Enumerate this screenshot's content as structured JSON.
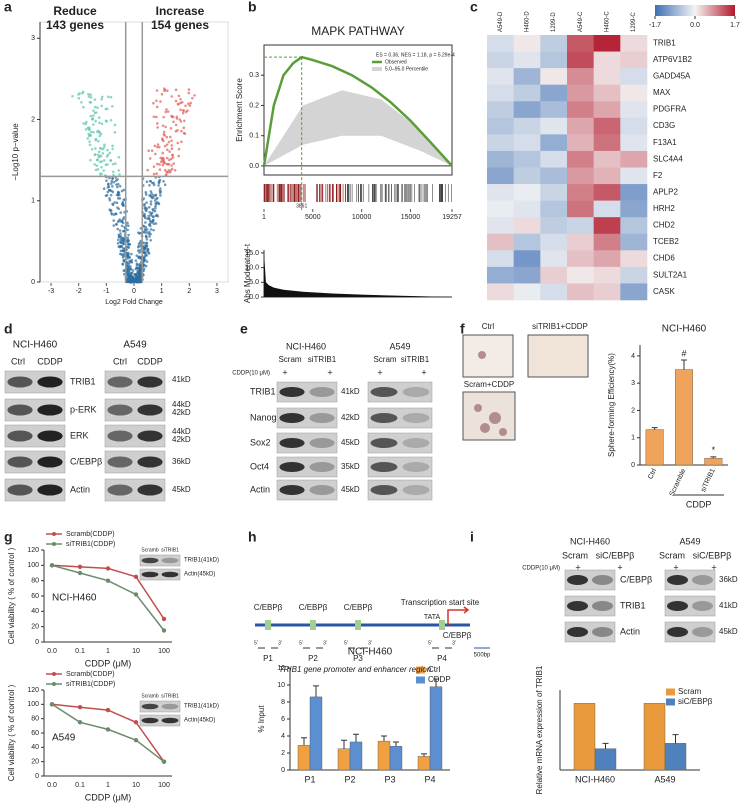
{
  "letters": [
    "a",
    "b",
    "c",
    "d",
    "e",
    "f",
    "g",
    "h",
    "i"
  ],
  "chart_data": [
    {
      "type": "volcano",
      "xlabel": "Log2 Fold Change",
      "ylabel": "−Log10 p−value",
      "xlim": [
        -3.4,
        3.4
      ],
      "xticks": [
        -3,
        -2,
        -1,
        0,
        1,
        2,
        3
      ],
      "ylim": [
        0,
        3.2
      ],
      "yticks": [
        0,
        1,
        2,
        3
      ],
      "thresholds": {
        "x": [
          -0.3,
          0.3
        ],
        "y": 1.3
      },
      "annotations": [
        "Reduce",
        "143 genes",
        "Increase",
        "154 genes"
      ],
      "colors": {
        "down": "#5fc4b0",
        "up": "#e0605a",
        "base": "#2f6e9e"
      }
    },
    {
      "type": "line",
      "title": "MAPK PATHWAY",
      "ylabel": "Enrichment Score",
      "xlim": [
        1,
        19257
      ],
      "xticks": [
        1,
        5000,
        10000,
        15000,
        19257
      ],
      "ylim": [
        -0.03,
        0.4
      ],
      "yticks": [
        {
          "value": 0,
          "label": "0.0"
        },
        0.1,
        0.2,
        0.3
      ],
      "annotation": "ES = 0.36, NES = 1.18, p = 5.29e-4",
      "series": [
        {
          "name": "Observed",
          "color": "#5a9e3a",
          "x": [
            1,
            1000,
            2000,
            3000,
            3861,
            5000,
            7000,
            9000,
            11000,
            13000,
            15000,
            17000,
            19257
          ],
          "values": [
            0,
            0.2,
            0.3,
            0.34,
            0.36,
            0.35,
            0.33,
            0.3,
            0.26,
            0.21,
            0.15,
            0.08,
            0
          ]
        }
      ],
      "band": {
        "name": "5.0–95.0 Percentile",
        "color": "#d4d4d4",
        "x": [
          1,
          4000,
          8000,
          12000,
          16000,
          19257
        ],
        "upper": [
          0,
          0.2,
          0.25,
          0.22,
          0.12,
          0
        ],
        "lower": [
          0,
          0.07,
          0.1,
          0.1,
          0.05,
          0
        ]
      }
    },
    {
      "type": "area",
      "ylabel": "Abs Moderated-t",
      "xlim": [
        1,
        19257
      ],
      "ylim": [
        0,
        16
      ],
      "yticks": [
        {
          "value": 0,
          "label": "0.0"
        },
        {
          "value": 5,
          "label": "5.0"
        },
        {
          "value": 10,
          "label": "10.0"
        },
        {
          "value": 15,
          "label": "15.0"
        }
      ],
      "color": "#111111",
      "x": [
        1,
        200,
        500,
        1000,
        2000,
        4000,
        7000,
        10000,
        14000,
        19257
      ],
      "values": [
        15,
        5,
        4,
        3.2,
        2.5,
        1.8,
        1.2,
        0.8,
        0.4,
        0
      ]
    },
    {
      "type": "heatmap",
      "columns": [
        "A549-D",
        "H460-D",
        "1299-D",
        "A549-C",
        "H460-C",
        "1299-C"
      ],
      "rows": [
        "TRIB1",
        "ATP6V1B2",
        "GADD45A",
        "MAX",
        "PDGFRA",
        "CD3G",
        "F13A1",
        "SLC4A4",
        "F2",
        "APLP2",
        "HRH2",
        "CHD2",
        "TCEB2",
        "CHD6",
        "SULT2A1",
        "CASK"
      ],
      "highlight_row": 0,
      "zlim": [
        -1.7,
        1.7
      ],
      "zticks": [
        -1.7,
        {
          "value": 0,
          "label": "0.0"
        },
        1.7
      ],
      "colors": [
        "#3f6fb5",
        "#f4f4f4",
        "#b2182b"
      ],
      "values": [
        [
          -0.3,
          0.1,
          -0.5,
          1.2,
          1.6,
          0.2
        ],
        [
          -0.4,
          -0.2,
          -0.6,
          1.3,
          0.2,
          0.3
        ],
        [
          -0.2,
          -0.8,
          0.1,
          0.8,
          0.2,
          -0.3
        ],
        [
          -0.3,
          -0.5,
          -1.0,
          0.7,
          0.4,
          0.1
        ],
        [
          -0.5,
          -1.0,
          -0.7,
          0.9,
          0.6,
          -0.2
        ],
        [
          -0.6,
          -0.4,
          -0.2,
          0.6,
          1.1,
          -0.3
        ],
        [
          -0.4,
          -0.3,
          -0.9,
          0.5,
          1.0,
          -0.2
        ],
        [
          -0.8,
          -0.6,
          -0.3,
          0.9,
          0.4,
          0.6
        ],
        [
          -1.0,
          -0.5,
          -0.7,
          0.7,
          0.5,
          -0.2
        ],
        [
          -0.2,
          -0.1,
          -0.4,
          0.9,
          1.2,
          -1.1
        ],
        [
          -0.1,
          -0.2,
          -0.6,
          1.0,
          -0.3,
          -1.0
        ],
        [
          -0.2,
          0.2,
          -0.5,
          -0.4,
          1.4,
          -0.6
        ],
        [
          0.4,
          -0.6,
          -0.3,
          0.3,
          0.9,
          -0.8
        ],
        [
          -0.3,
          -1.2,
          -0.2,
          0.4,
          0.6,
          0.2
        ],
        [
          -0.9,
          -1.0,
          0.3,
          0.1,
          0.2,
          -0.4
        ],
        [
          0.2,
          -0.1,
          -0.3,
          0.4,
          0.3,
          -1.0
        ]
      ]
    },
    {
      "type": "bar",
      "title": "NCI-H460",
      "ylabel": "Sphere-forming Efficiency(%)",
      "ylim": [
        0,
        4.4
      ],
      "yticks": [
        0,
        1,
        2,
        3,
        4
      ],
      "categories": [
        "Ctrl",
        "Scramble",
        "siTRIB1"
      ],
      "values": [
        1.3,
        3.5,
        0.25
      ],
      "errors": [
        0.07,
        0.35,
        0.05
      ],
      "color": "#f0a35a",
      "rotate_labels": true,
      "marks": [
        {
          "category": 1,
          "text": "#"
        },
        {
          "category": 2,
          "text": "*"
        }
      ],
      "group": {
        "label": "CDDP",
        "from": 1,
        "to": 2
      }
    },
    {
      "type": "line",
      "ylabel": "Cell viability ( % of control )",
      "xlabel": "CDDP  (μM)",
      "annotation": "NCI-H460",
      "categories": [
        "0.0",
        "0.1",
        "1",
        "10",
        "100"
      ],
      "ylim": [
        0,
        120
      ],
      "yticks": [
        0,
        20,
        40,
        60,
        80,
        100,
        120
      ],
      "series": [
        {
          "name": "Scramb(CDDP)",
          "color": "#c0504d",
          "values": [
            100,
            98,
            96,
            85,
            30
          ]
        },
        {
          "name": "siTRIB1(CDDP)",
          "color": "#6b8c6b",
          "values": [
            100,
            90,
            80,
            62,
            15
          ]
        }
      ]
    },
    {
      "type": "line",
      "ylabel": "Cell viability ( % of control )",
      "xlabel": "CDDP  (μM)",
      "annotation": "A549",
      "categories": [
        "0.0",
        "0.1",
        "1",
        "10",
        "100"
      ],
      "ylim": [
        0,
        120
      ],
      "yticks": [
        0,
        20,
        40,
        60,
        80,
        100,
        120
      ],
      "series": [
        {
          "name": "Scramb(CDDP)",
          "color": "#c0504d",
          "values": [
            100,
            96,
            92,
            75,
            20
          ]
        },
        {
          "name": "siTRIB1(CDDP)",
          "color": "#6b8c6b",
          "values": [
            100,
            75,
            65,
            50,
            20
          ]
        }
      ]
    },
    {
      "type": "bar",
      "title": "NCI-H460",
      "ylabel": "% Input",
      "ylim": [
        0,
        12
      ],
      "yticks": [
        0,
        2,
        4,
        6,
        8,
        10,
        12
      ],
      "categories": [
        "P1",
        "P2",
        "P3",
        "P4"
      ],
      "series": [
        {
          "name": "Ctrl",
          "color": "#f0a040",
          "values": [
            2.9,
            2.5,
            3.4,
            1.6
          ],
          "errors": [
            0.9,
            1.0,
            0.6,
            0.3
          ]
        },
        {
          "name": "CDDP",
          "color": "#5b8fd0",
          "values": [
            8.6,
            3.3,
            2.8,
            9.8
          ],
          "errors": [
            1.3,
            0.9,
            0.5,
            0.9
          ]
        }
      ]
    },
    {
      "type": "bar",
      "ylabel": "Relative mRNA expression of TRIB1",
      "ylim": [
        0,
        1.2
      ],
      "categories": [
        "NCI-H460",
        "A549"
      ],
      "series": [
        {
          "name": "Scram",
          "color": "#e89a3c",
          "values": [
            1,
            1
          ]
        },
        {
          "name": "siC/EBPβ",
          "color": "#4f81bd",
          "values": [
            0.32,
            0.4
          ],
          "errors": [
            0.08,
            0.13
          ]
        }
      ]
    }
  ],
  "blot_d": {
    "cell_lines": [
      "NCI-H460",
      "A549"
    ],
    "lanes": [
      "Ctrl",
      "CDDP",
      "Ctrl",
      "CDDP"
    ],
    "rows": [
      "TRIB1",
      "p-ERK",
      "ERK",
      "C/EBPβ",
      "Actin"
    ],
    "sizes": [
      "41kD",
      "44kD",
      "42kD",
      "44kD",
      "42kD",
      "36kD",
      "45kD"
    ]
  },
  "blot_e": {
    "cell_lines": [
      "NCI-H460",
      "A549"
    ],
    "lanes": [
      "Scram",
      "siTRIB1",
      "Scram",
      "siTRIB1"
    ],
    "treatment": "CDDP(10 μM)",
    "plus": [
      "+",
      "+",
      "+",
      "+"
    ],
    "rows": [
      "TRIB1",
      "Nanog",
      "Sox2",
      "Oct4",
      "Actin"
    ],
    "sizes": [
      "41kD",
      "42kD",
      "45kD",
      "35kD",
      "45kD"
    ]
  },
  "sphere_images": [
    "Ctrl",
    "siTRIB1+CDDP",
    "Scram+CDDP"
  ],
  "g_insets": [
    {
      "lanes": [
        "Scramb",
        "siTRIB1"
      ],
      "rows": [
        "TRIB1(41kD)",
        "Actin(45kD)"
      ]
    },
    {
      "lanes": [
        "Scramb",
        "siTRIB1"
      ],
      "rows": [
        "TRIB1(41kD)",
        "Actin(45kD)"
      ]
    }
  ],
  "promoter": {
    "sites": [
      "C/EBPβ",
      "C/EBPβ",
      "C/EBPβ",
      "C/EBPβ"
    ],
    "tss": "Transcription start site",
    "tata": "TATA",
    "primers": [
      "P1",
      "P2",
      "P3",
      "P4"
    ],
    "ends": [
      "5'",
      "3'"
    ],
    "scale": "500bp",
    "caption": "TRIB1 gene promoter and enhancer region"
  },
  "blot_i": {
    "cell_lines": [
      "NCI-H460",
      "A549"
    ],
    "lanes": [
      "Scram",
      "siC/EBPβ",
      "Scram",
      "siC/EBPβ"
    ],
    "treatment": "CDDP(10 μM)",
    "plus": [
      "+",
      "+",
      "+",
      "+"
    ],
    "rows": [
      "C/EBPβ",
      "TRIB1",
      "Actin"
    ],
    "sizes": [
      "36kD",
      "41kD",
      "45kD"
    ]
  }
}
